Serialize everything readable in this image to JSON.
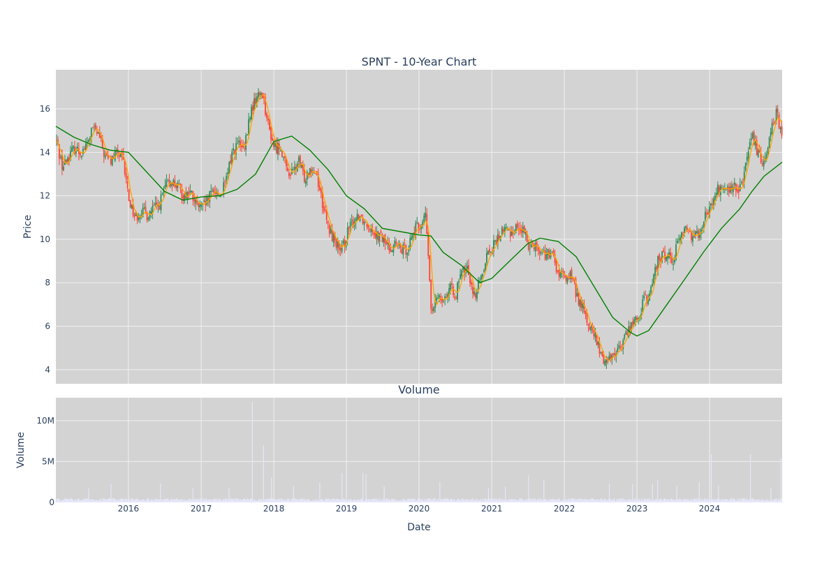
{
  "chart_data": [
    {
      "type": "candlestick",
      "title": "SPNT - 10-Year Chart",
      "ylabel": "Price",
      "xlabel": "",
      "x_range": [
        "2015-01-01",
        "2024-12-31"
      ],
      "ylim": [
        3.35,
        17.8
      ],
      "y_ticks": [
        4,
        6,
        8,
        10,
        12,
        14,
        16
      ],
      "grid": true,
      "colors": {
        "up": "#2e8b57",
        "down": "#ff4136",
        "ma_short": "#ffa500",
        "ma_long": "#008000",
        "plot_bg": "#d3d3d3",
        "grid": "#f0f0f0"
      },
      "price_path": [
        [
          "2015-01-01",
          14.5
        ],
        [
          "2015-02-01",
          13.3
        ],
        [
          "2015-03-01",
          13.8
        ],
        [
          "2015-04-01",
          14.2
        ],
        [
          "2015-05-01",
          14.0
        ],
        [
          "2015-06-01",
          14.3
        ],
        [
          "2015-07-01",
          15.1
        ],
        [
          "2015-08-01",
          14.8
        ],
        [
          "2015-09-01",
          13.8
        ],
        [
          "2015-10-01",
          13.6
        ],
        [
          "2015-11-01",
          14.0
        ],
        [
          "2015-12-01",
          13.6
        ],
        [
          "2016-01-01",
          11.8
        ],
        [
          "2016-02-01",
          11.0
        ],
        [
          "2016-03-01",
          11.3
        ],
        [
          "2016-04-01",
          11.1
        ],
        [
          "2016-05-01",
          11.4
        ],
        [
          "2016-06-01",
          11.6
        ],
        [
          "2016-07-01",
          12.4
        ],
        [
          "2016-08-01",
          12.7
        ],
        [
          "2016-09-01",
          12.4
        ],
        [
          "2016-10-01",
          12.0
        ],
        [
          "2016-11-01",
          12.2
        ],
        [
          "2016-12-01",
          11.6
        ],
        [
          "2017-01-01",
          11.4
        ],
        [
          "2017-02-01",
          11.8
        ],
        [
          "2017-03-01",
          12.3
        ],
        [
          "2017-04-01",
          12.0
        ],
        [
          "2017-05-01",
          12.6
        ],
        [
          "2017-06-01",
          14.0
        ],
        [
          "2017-07-01",
          14.4
        ],
        [
          "2017-08-01",
          14.0
        ],
        [
          "2017-09-01",
          15.8
        ],
        [
          "2017-10-01",
          16.5
        ],
        [
          "2017-11-01",
          16.8
        ],
        [
          "2017-12-01",
          15.2
        ],
        [
          "2018-01-01",
          14.2
        ],
        [
          "2018-02-01",
          14.3
        ],
        [
          "2018-03-01",
          13.2
        ],
        [
          "2018-04-01",
          13.0
        ],
        [
          "2018-05-01",
          13.6
        ],
        [
          "2018-06-01",
          12.8
        ],
        [
          "2018-07-01",
          13.4
        ],
        [
          "2018-08-01",
          13.0
        ],
        [
          "2018-09-01",
          11.6
        ],
        [
          "2018-10-01",
          10.4
        ],
        [
          "2018-11-01",
          10.0
        ],
        [
          "2018-12-01",
          9.3
        ],
        [
          "2019-01-01",
          10.3
        ],
        [
          "2019-02-01",
          10.8
        ],
        [
          "2019-03-01",
          11.2
        ],
        [
          "2019-04-01",
          10.8
        ],
        [
          "2019-05-01",
          10.6
        ],
        [
          "2019-06-01",
          10.2
        ],
        [
          "2019-07-01",
          10.0
        ],
        [
          "2019-08-01",
          9.6
        ],
        [
          "2019-09-01",
          9.8
        ],
        [
          "2019-10-01",
          9.5
        ],
        [
          "2019-11-01",
          9.6
        ],
        [
          "2019-12-01",
          10.4
        ],
        [
          "2020-01-01",
          10.6
        ],
        [
          "2020-02-01",
          11.1
        ],
        [
          "2020-03-01",
          6.4
        ],
        [
          "2020-04-01",
          7.5
        ],
        [
          "2020-05-01",
          7.3
        ],
        [
          "2020-06-01",
          7.7
        ],
        [
          "2020-07-01",
          7.5
        ],
        [
          "2020-08-01",
          8.5
        ],
        [
          "2020-09-01",
          8.6
        ],
        [
          "2020-10-01",
          7.4
        ],
        [
          "2020-11-01",
          8.1
        ],
        [
          "2020-12-01",
          9.3
        ],
        [
          "2021-01-01",
          9.6
        ],
        [
          "2021-02-01",
          10.1
        ],
        [
          "2021-03-01",
          10.5
        ],
        [
          "2021-04-01",
          10.3
        ],
        [
          "2021-05-01",
          10.6
        ],
        [
          "2021-06-01",
          10.4
        ],
        [
          "2021-07-01",
          9.8
        ],
        [
          "2021-08-01",
          9.8
        ],
        [
          "2021-09-01",
          9.4
        ],
        [
          "2021-10-01",
          9.3
        ],
        [
          "2021-11-01",
          9.2
        ],
        [
          "2021-12-01",
          8.3
        ],
        [
          "2022-01-01",
          8.2
        ],
        [
          "2022-02-01",
          8.4
        ],
        [
          "2022-03-01",
          7.4
        ],
        [
          "2022-04-01",
          6.8
        ],
        [
          "2022-05-01",
          6.0
        ],
        [
          "2022-06-01",
          5.5
        ],
        [
          "2022-07-01",
          4.6
        ],
        [
          "2022-08-01",
          4.4
        ],
        [
          "2022-09-01",
          4.8
        ],
        [
          "2022-10-01",
          4.9
        ],
        [
          "2022-11-01",
          5.6
        ],
        [
          "2022-12-01",
          6.1
        ],
        [
          "2023-01-01",
          6.3
        ],
        [
          "2023-02-01",
          7.2
        ],
        [
          "2023-03-01",
          7.3
        ],
        [
          "2023-04-01",
          8.8
        ],
        [
          "2023-05-01",
          9.2
        ],
        [
          "2023-06-01",
          9.3
        ],
        [
          "2023-07-01",
          9.1
        ],
        [
          "2023-08-01",
          10.2
        ],
        [
          "2023-09-01",
          10.5
        ],
        [
          "2023-10-01",
          10.2
        ],
        [
          "2023-11-01",
          10.3
        ],
        [
          "2023-12-01",
          11.0
        ],
        [
          "2024-01-01",
          11.4
        ],
        [
          "2024-02-01",
          12.2
        ],
        [
          "2024-03-01",
          12.4
        ],
        [
          "2024-04-01",
          12.2
        ],
        [
          "2024-05-01",
          12.4
        ],
        [
          "2024-06-01",
          12.3
        ],
        [
          "2024-07-01",
          13.6
        ],
        [
          "2024-08-01",
          14.7
        ],
        [
          "2024-09-01",
          13.8
        ],
        [
          "2024-10-01",
          13.6
        ],
        [
          "2024-11-01",
          15.2
        ],
        [
          "2024-12-01",
          15.8
        ],
        [
          "2024-12-31",
          14.4
        ]
      ],
      "ma_long_path": [
        [
          "2015-01-01",
          15.2
        ],
        [
          "2015-04-01",
          14.7
        ],
        [
          "2015-07-01",
          14.35
        ],
        [
          "2015-10-01",
          14.1
        ],
        [
          "2016-01-01",
          14.0
        ],
        [
          "2016-04-01",
          13.1
        ],
        [
          "2016-07-01",
          12.2
        ],
        [
          "2016-10-01",
          11.8
        ],
        [
          "2017-01-01",
          11.95
        ],
        [
          "2017-04-01",
          12.0
        ],
        [
          "2017-07-01",
          12.3
        ],
        [
          "2017-10-01",
          13.0
        ],
        [
          "2018-01-01",
          14.5
        ],
        [
          "2018-04-01",
          14.75
        ],
        [
          "2018-07-01",
          14.1
        ],
        [
          "2018-10-01",
          13.2
        ],
        [
          "2019-01-01",
          12.0
        ],
        [
          "2019-04-01",
          11.4
        ],
        [
          "2019-07-01",
          10.5
        ],
        [
          "2019-10-01",
          10.35
        ],
        [
          "2020-01-01",
          10.2
        ],
        [
          "2020-03-01",
          10.15
        ],
        [
          "2020-05-01",
          9.4
        ],
        [
          "2020-08-01",
          8.8
        ],
        [
          "2020-11-01",
          8.0
        ],
        [
          "2021-01-01",
          8.2
        ],
        [
          "2021-04-01",
          9.0
        ],
        [
          "2021-07-01",
          9.8
        ],
        [
          "2021-09-01",
          10.05
        ],
        [
          "2021-12-01",
          9.9
        ],
        [
          "2022-03-01",
          9.2
        ],
        [
          "2022-06-01",
          7.8
        ],
        [
          "2022-09-01",
          6.4
        ],
        [
          "2022-12-01",
          5.7
        ],
        [
          "2023-01-01",
          5.55
        ],
        [
          "2023-03-01",
          5.8
        ],
        [
          "2023-06-01",
          7.0
        ],
        [
          "2023-09-01",
          8.2
        ],
        [
          "2023-12-01",
          9.4
        ],
        [
          "2024-03-01",
          10.5
        ],
        [
          "2024-06-01",
          11.4
        ],
        [
          "2024-08-01",
          12.2
        ],
        [
          "2024-10-01",
          12.9
        ],
        [
          "2024-12-31",
          13.55
        ]
      ]
    },
    {
      "type": "bar",
      "title": "Volume",
      "ylabel": "Volume",
      "xlabel": "Date",
      "ylim": [
        0,
        12800000
      ],
      "y_ticks": [
        0,
        5000000,
        10000000
      ],
      "y_tick_labels": [
        "0",
        "5M",
        "10M"
      ],
      "x_tick_labels": [
        "2016",
        "2017",
        "2018",
        "2019",
        "2020",
        "2021",
        "2022",
        "2023",
        "2024"
      ],
      "grid": true,
      "bar_color": "#e6e6fa",
      "baseline_volume": 400000,
      "volume_spikes": [
        [
          "2015-06-15",
          1700000
        ],
        [
          "2015-10-05",
          2300000
        ],
        [
          "2016-06-10",
          2300000
        ],
        [
          "2016-11-20",
          1700000
        ],
        [
          "2017-05-20",
          1800000
        ],
        [
          "2017-09-15",
          12300000
        ],
        [
          "2017-11-10",
          7000000
        ],
        [
          "2017-12-20",
          3000000
        ],
        [
          "2018-04-10",
          2000000
        ],
        [
          "2018-08-20",
          2400000
        ],
        [
          "2018-12-10",
          3600000
        ],
        [
          "2019-03-25",
          3600000
        ],
        [
          "2019-04-10",
          3400000
        ],
        [
          "2019-07-10",
          2000000
        ],
        [
          "2020-04-15",
          2500000
        ],
        [
          "2020-12-15",
          1800000
        ],
        [
          "2021-03-10",
          1900000
        ],
        [
          "2021-07-05",
          3300000
        ],
        [
          "2021-09-20",
          2800000
        ],
        [
          "2022-08-15",
          2300000
        ],
        [
          "2022-12-10",
          2300000
        ],
        [
          "2023-03-20",
          2300000
        ],
        [
          "2023-04-15",
          2700000
        ],
        [
          "2023-07-20",
          2000000
        ],
        [
          "2023-11-10",
          2500000
        ],
        [
          "2024-01-10",
          5900000
        ],
        [
          "2024-02-15",
          2100000
        ],
        [
          "2024-07-25",
          5900000
        ],
        [
          "2024-11-05",
          1800000
        ],
        [
          "2024-12-25",
          5400000
        ]
      ]
    }
  ]
}
